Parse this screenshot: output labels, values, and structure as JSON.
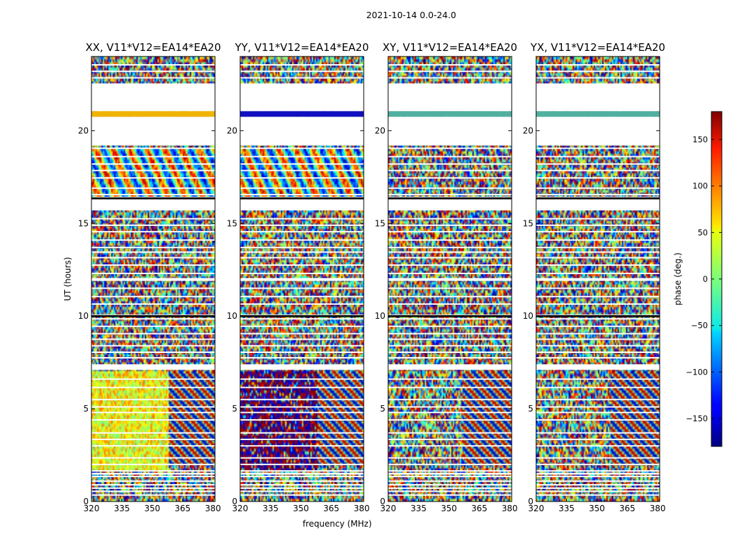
{
  "suptitle": "2021-10-14 0.0-24.0",
  "chart_data": {
    "type": "heatmap",
    "title": "2021-10-14 0.0-24.0",
    "xlabel": "frequency (MHz)",
    "ylabel": "UT (hours)",
    "xlim": [
      320,
      381
    ],
    "ylim": [
      0,
      24
    ],
    "xticks": [
      320,
      335,
      350,
      365,
      380
    ],
    "yticks": [
      0,
      5,
      10,
      15,
      20
    ],
    "panels": [
      {
        "title": "XX, V11*V12=EA14*EA20",
        "style": "warm"
      },
      {
        "title": "YY, V11*V12=EA14*EA20",
        "style": "hot"
      },
      {
        "title": "XY, V11*V12=EA14*EA20",
        "style": "noise"
      },
      {
        "title": "YX, V11*V12=EA14*EA20",
        "style": "noise"
      }
    ],
    "blank_ut_ranges": [
      [
        21.05,
        22.55
      ],
      [
        19.2,
        20.75
      ],
      [
        7.1,
        7.4
      ],
      [
        15.7,
        16.3
      ],
      [
        11.9,
        12.05
      ],
      [
        1.45,
        1.55
      ]
    ],
    "flagged_ut_lines": [
      0.35,
      0.55,
      0.72,
      0.9,
      1.1,
      1.35,
      1.65,
      2.0,
      2.35,
      3.0,
      3.35,
      3.7,
      4.4,
      4.8,
      5.1,
      5.5,
      6.15,
      6.6,
      7.75,
      8.05,
      8.4,
      8.75,
      9.05,
      9.45,
      9.85,
      10.05,
      10.65,
      11.05,
      11.5,
      12.3,
      12.75,
      13.15,
      13.45,
      13.7,
      14.1,
      14.55,
      14.9,
      15.25,
      16.4,
      16.55,
      16.9,
      17.45,
      17.85,
      18.2,
      18.6,
      19.05,
      22.85,
      23.2,
      23.55
    ],
    "colorbar": {
      "label": "phase (deg.)",
      "range": [
        -180,
        180
      ],
      "ticks": [
        150,
        100,
        50,
        0,
        -50,
        -100,
        -150
      ],
      "tick_labels": [
        "150",
        "100",
        "50",
        "0",
        "−50",
        "−100",
        "−150"
      ],
      "colormap": "jet"
    }
  }
}
